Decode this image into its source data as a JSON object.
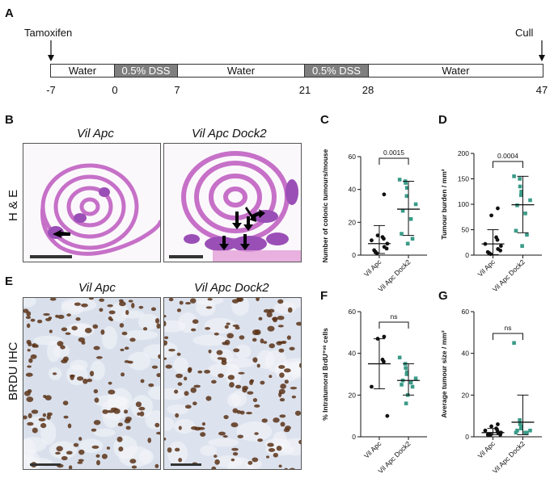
{
  "panels": {
    "A": "A",
    "B": "B",
    "C": "C",
    "D": "D",
    "E": "E",
    "F": "F",
    "G": "G"
  },
  "timeline": {
    "start_label": "Tamoxifen",
    "end_label": "Cull",
    "segments": [
      {
        "label": "Water",
        "type": "water"
      },
      {
        "label": "0.5% DSS",
        "type": "dss"
      },
      {
        "label": "Water",
        "type": "water"
      },
      {
        "label": "0.5% DSS",
        "type": "dss"
      },
      {
        "label": "Water",
        "type": "water"
      }
    ],
    "ticks": [
      "-7",
      "0",
      "7",
      "21",
      "28",
      "47"
    ]
  },
  "histology": {
    "he_label": "H & E",
    "brdu_label": "BRDU IHC",
    "cond_left": "Vil Apc",
    "cond_right": "Vil Apc Dock2",
    "cond_left_e": "Vil Apc",
    "cond_right_e": "Vil Apc Dock2"
  },
  "colors": {
    "apc": "#111111",
    "dock2": "#3a9b88",
    "he_pink": "#c96ec9",
    "brdu_brown": "#5a3318",
    "brdu_blue": "#c7d3e6"
  },
  "chart_data": [
    {
      "panel": "C",
      "type": "scatter",
      "ylabel": "Number of colonic tumours/mouse",
      "ylim": [
        0,
        60
      ],
      "yticks": [
        0,
        20,
        40,
        60
      ],
      "categories": [
        "Vil Apc",
        "Vil Apc Dock2"
      ],
      "pvalue": "0.0015",
      "series": [
        {
          "values": [
            37,
            12,
            11,
            10,
            9,
            7,
            5,
            4,
            3,
            2,
            1
          ],
          "mean": 7,
          "sd": [
            1,
            18
          ]
        },
        {
          "values": [
            46,
            45,
            44,
            41,
            36,
            31,
            27,
            22,
            13,
            10,
            7
          ],
          "mean": 28,
          "sd": [
            12,
            45
          ]
        }
      ]
    },
    {
      "panel": "D",
      "type": "scatter",
      "ylabel": "Tumour burden / mm²",
      "ylim": [
        0,
        200
      ],
      "yticks": [
        0,
        50,
        100,
        150,
        200
      ],
      "categories": [
        "Vil Apc",
        "Vil Apc Dock2"
      ],
      "pvalue": "0.0004",
      "series": [
        {
          "values": [
            92,
            78,
            35,
            30,
            22,
            18,
            12,
            9,
            6,
            4,
            2
          ],
          "mean": 22,
          "sd": [
            1,
            50
          ]
        },
        {
          "values": [
            155,
            150,
            135,
            125,
            118,
            108,
            98,
            82,
            48,
            40,
            18
          ],
          "mean": 99,
          "sd": [
            44,
            155
          ]
        }
      ]
    },
    {
      "panel": "F",
      "type": "scatter",
      "ylabel": "% Intratumoral BrdU⁺ᵛᵉ cells",
      "ylim": [
        0,
        60
      ],
      "yticks": [
        0,
        20,
        40,
        60
      ],
      "categories": [
        "Vil Apc",
        "Vil Apc Dock2"
      ],
      "pvalue": "ns",
      "series": [
        {
          "values": [
            48,
            47,
            37,
            36,
            24,
            10
          ],
          "mean": 35,
          "sd": [
            23,
            47
          ]
        },
        {
          "values": [
            38,
            35,
            33,
            31,
            30,
            28,
            27,
            26,
            25,
            24,
            20,
            16
          ],
          "mean": 27,
          "sd": [
            20,
            35
          ]
        }
      ]
    },
    {
      "panel": "G",
      "type": "scatter",
      "ylabel": "Average tumour size / mm²",
      "ylim": [
        0,
        60
      ],
      "yticks": [
        0,
        20,
        40,
        60
      ],
      "categories": [
        "Vil Apc",
        "Vil Apc Dock2"
      ],
      "pvalue": "ns",
      "series": [
        {
          "values": [
            6,
            5,
            4,
            3,
            3,
            2,
            2,
            1,
            1,
            1,
            1
          ],
          "mean": 2,
          "sd": [
            1,
            4
          ]
        },
        {
          "values": [
            45,
            8,
            6,
            5,
            4,
            3,
            3,
            2,
            2,
            2
          ],
          "mean": 7,
          "sd": [
            1,
            20
          ]
        }
      ]
    }
  ]
}
